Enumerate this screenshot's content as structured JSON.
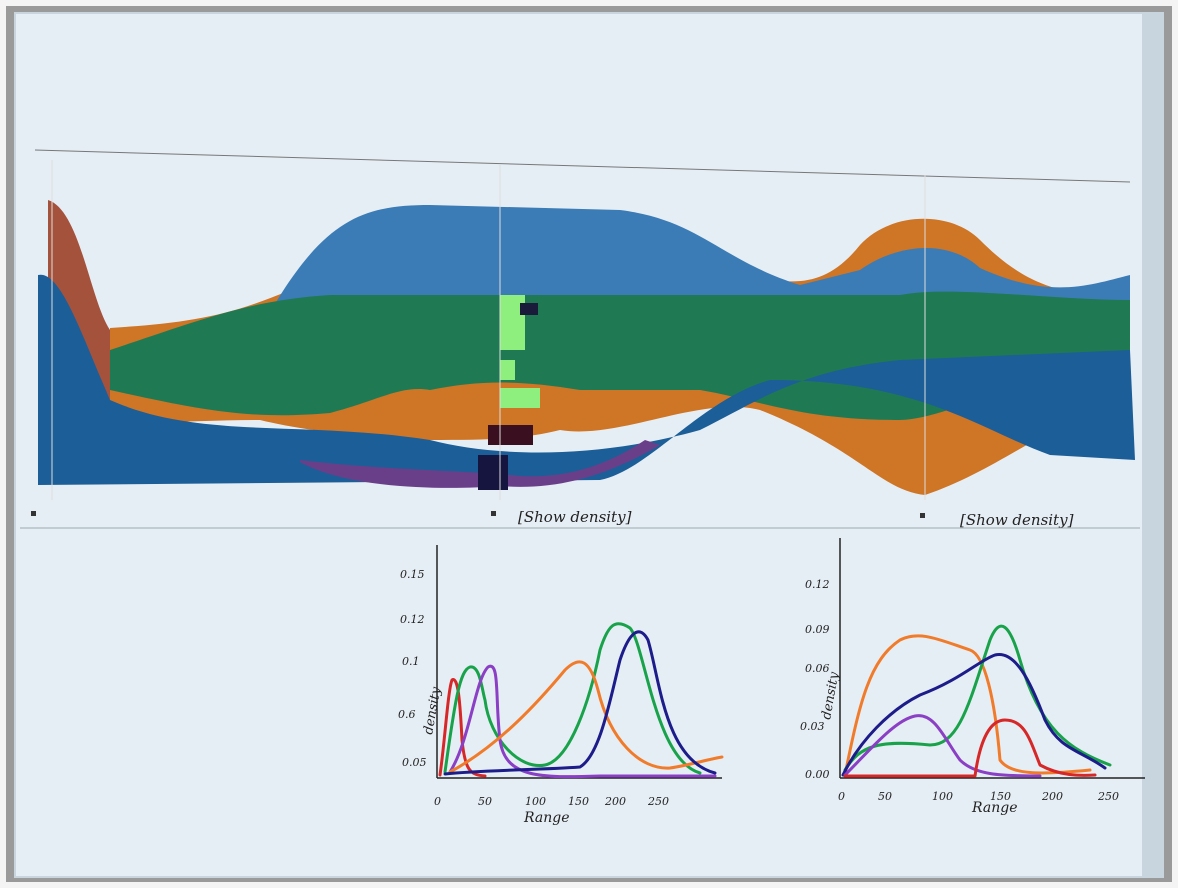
{
  "annotations": [
    "[Show density]",
    "[Show density]"
  ],
  "left_sketch": {
    "y_label": "density",
    "x_label": "Range",
    "y_ticks": [
      "0.15",
      "0.12",
      "0.1",
      "0.6",
      "0.05"
    ],
    "x_ticks": [
      "0",
      "50",
      "100",
      "150",
      "200",
      "250"
    ]
  },
  "right_sketch": {
    "y_label": "density",
    "x_label": "Range",
    "y_ticks": [
      "0.12",
      "0.09",
      "0.06",
      "0.03",
      "0.00"
    ],
    "x_ticks": [
      "0",
      "50",
      "100",
      "150",
      "200",
      "250"
    ]
  }
}
